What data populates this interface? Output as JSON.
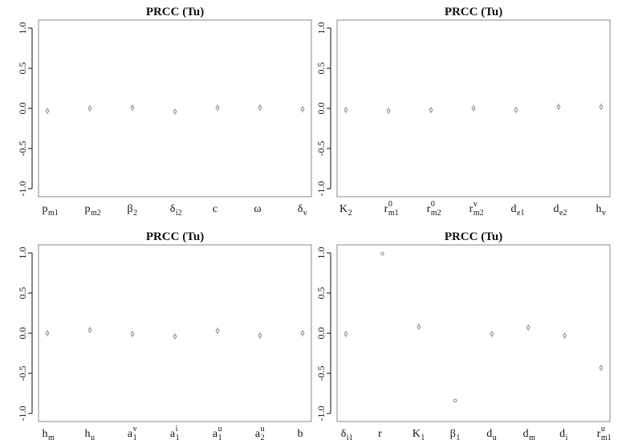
{
  "chart_data": [
    {
      "type": "errorbar",
      "title": "PRCC (Tu)",
      "categories": [
        {
          "base": "p",
          "sub": "m1"
        },
        {
          "base": "p",
          "sub": "m2"
        },
        {
          "base": "β",
          "sub": "2"
        },
        {
          "base": "δ",
          "sub": "i2"
        },
        {
          "base": "c"
        },
        {
          "base": "ω"
        },
        {
          "base": "δ",
          "sub": "v"
        }
      ],
      "values": [
        -0.03,
        0.0,
        0.01,
        -0.04,
        0.01,
        0.01,
        -0.01
      ],
      "errors": [
        0.04,
        0.04,
        0.04,
        0.04,
        0.04,
        0.04,
        0.04
      ],
      "ylim": [
        -1.1,
        1.1
      ],
      "yticks": [
        {
          "value": -1,
          "label": "-1.0"
        },
        {
          "value": -0.5,
          "label": "-0.5"
        },
        {
          "value": 0,
          "label": "0.0"
        },
        {
          "value": 0.5,
          "label": "0.5"
        },
        {
          "value": 1,
          "label": "1.0"
        }
      ],
      "color": "#888888"
    },
    {
      "type": "errorbar",
      "title": "PRCC (Tu)",
      "categories": [
        {
          "base": "K",
          "sub": "2"
        },
        {
          "base": "r",
          "sup": "0",
          "sub": "m1"
        },
        {
          "base": "r",
          "sup": "0",
          "sub": "m2"
        },
        {
          "base": "r",
          "sup": "v",
          "sub": "m2"
        },
        {
          "base": "d",
          "sub": "e1"
        },
        {
          "base": "d",
          "sub": "e2"
        },
        {
          "base": "h",
          "sub": "v"
        }
      ],
      "values": [
        -0.02,
        -0.03,
        -0.02,
        0.0,
        -0.02,
        0.02,
        0.02
      ],
      "errors": [
        0.04,
        0.04,
        0.04,
        0.04,
        0.04,
        0.04,
        0.04
      ],
      "ylim": [
        -1.1,
        1.1
      ],
      "yticks": [
        {
          "value": -1,
          "label": "-1.0"
        },
        {
          "value": -0.5,
          "label": "-0.5"
        },
        {
          "value": 0,
          "label": "0.0"
        },
        {
          "value": 0.5,
          "label": "0.5"
        },
        {
          "value": 1,
          "label": "1.0"
        }
      ],
      "color": "#888888"
    },
    {
      "type": "errorbar",
      "title": "PRCC (Tu)",
      "categories": [
        {
          "base": "h",
          "sub": "m"
        },
        {
          "base": "h",
          "sub": "u"
        },
        {
          "base": "a",
          "sup": "v",
          "sub": "1"
        },
        {
          "base": "a",
          "sup": "i",
          "sub": "1"
        },
        {
          "base": "a",
          "sup": "u",
          "sub": "1"
        },
        {
          "base": "a",
          "sup": "u",
          "sub": "2"
        },
        {
          "base": "b"
        }
      ],
      "values": [
        0.0,
        0.04,
        -0.01,
        -0.04,
        0.03,
        -0.03,
        0.0
      ],
      "errors": [
        0.04,
        0.04,
        0.04,
        0.04,
        0.04,
        0.04,
        0.04
      ],
      "ylim": [
        -1.1,
        1.1
      ],
      "yticks": [
        {
          "value": -1,
          "label": "-1.0"
        },
        {
          "value": -0.5,
          "label": "-0.5"
        },
        {
          "value": 0,
          "label": "0.0"
        },
        {
          "value": 0.5,
          "label": "0.5"
        },
        {
          "value": 1,
          "label": "1.0"
        }
      ],
      "color": "#888888"
    },
    {
      "type": "errorbar",
      "title": "PRCC (Tu)",
      "categories": [
        {
          "base": "δ",
          "sub": "i1"
        },
        {
          "base": "r"
        },
        {
          "base": "K",
          "sub": "1"
        },
        {
          "base": "β",
          "sub": "1"
        },
        {
          "base": "d",
          "sub": "u"
        },
        {
          "base": "d",
          "sub": "m"
        },
        {
          "base": "d",
          "sub": "i"
        },
        {
          "base": "r",
          "sup": "u",
          "sub": "m1"
        }
      ],
      "values": [
        -0.01,
        0.99,
        0.08,
        -0.84,
        -0.01,
        0.07,
        -0.03,
        -0.43
      ],
      "errors": [
        0.04,
        0.01,
        0.04,
        0.01,
        0.04,
        0.04,
        0.04,
        0.04
      ],
      "ylim": [
        -1.1,
        1.1
      ],
      "yticks": [
        {
          "value": -1,
          "label": "-1.0"
        },
        {
          "value": -0.5,
          "label": "-0.5"
        },
        {
          "value": 0,
          "label": "0.0"
        },
        {
          "value": 0.5,
          "label": "0.5"
        },
        {
          "value": 1,
          "label": "1.0"
        }
      ],
      "color": "#888888"
    }
  ]
}
